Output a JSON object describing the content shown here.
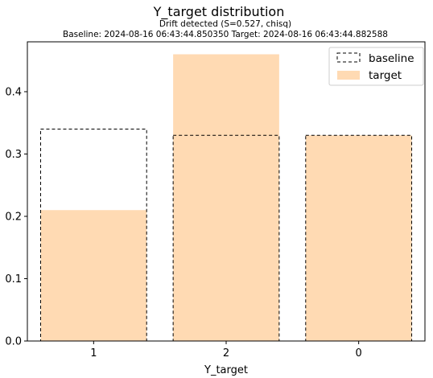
{
  "chart_data": {
    "type": "bar",
    "title": "Y_target distribution",
    "subtitle_lines": [
      "Drift detected (S=0.527, chisq)",
      "Baseline: 2024-08-16 06:43:44.850350 Target: 2024-08-16 06:43:44.882588"
    ],
    "xlabel": "Y_target",
    "ylabel": "",
    "categories": [
      "1",
      "2",
      "0"
    ],
    "series": [
      {
        "name": "baseline",
        "values": [
          0.34,
          0.33,
          0.33
        ],
        "style": "dashed-outline",
        "color": "#000000"
      },
      {
        "name": "target",
        "values": [
          0.21,
          0.46,
          0.33
        ],
        "style": "filled",
        "color": "#ffdab3"
      }
    ],
    "ylim": [
      0,
      0.48
    ],
    "yticks": [
      "0.0",
      "0.1",
      "0.2",
      "0.3",
      "0.4"
    ],
    "ytick_values": [
      0.0,
      0.1,
      0.2,
      0.3,
      0.4
    ],
    "legend_position": "top-right",
    "grid": false
  }
}
